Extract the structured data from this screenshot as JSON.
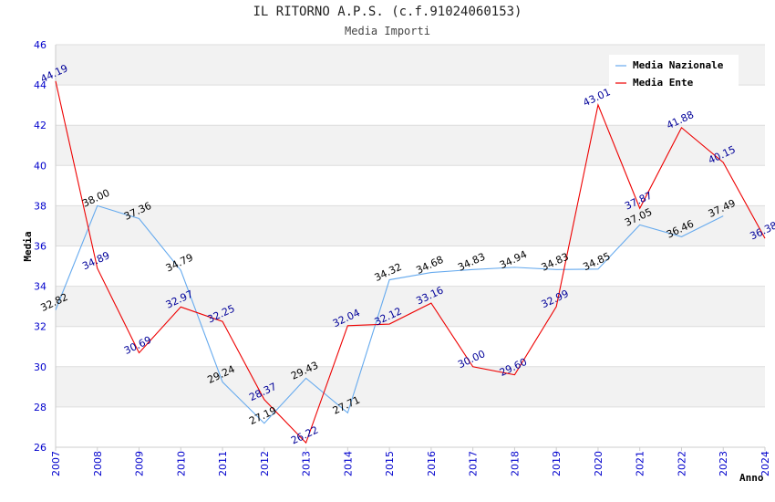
{
  "chart_data": {
    "type": "line",
    "title": "IL RITORNO A.P.S. (c.f.91024060153)",
    "subtitle": "Media Importi",
    "xlabel": "Anno",
    "ylabel": "Media",
    "ylim": [
      26,
      46
    ],
    "yticks": [
      26,
      28,
      30,
      32,
      34,
      36,
      38,
      40,
      42,
      44,
      46
    ],
    "categories": [
      "2007",
      "2008",
      "2009",
      "2010",
      "2011",
      "2012",
      "2013",
      "2014",
      "2015",
      "2016",
      "2017",
      "2018",
      "2019",
      "2020",
      "2021",
      "2022",
      "2023",
      "2024"
    ],
    "legend_position": "top-right",
    "series": [
      {
        "name": "Media Nazionale",
        "color": "#66aaee",
        "label_color": "#000000",
        "values": [
          32.82,
          38.0,
          37.36,
          34.79,
          29.24,
          27.19,
          29.43,
          27.71,
          34.32,
          34.68,
          34.83,
          34.94,
          34.83,
          34.85,
          37.05,
          36.46,
          37.49,
          null
        ],
        "labels": [
          "32.82",
          "38.00",
          "37.36",
          "34.79",
          "29.24",
          "27.19",
          "29.43",
          "27.71",
          "34.32",
          "34.68",
          "34.83",
          "34.94",
          "34.83",
          "34.85",
          "37.05",
          "36.46",
          "37.49",
          null
        ]
      },
      {
        "name": "Media Ente",
        "color": "#ee0000",
        "label_color": "#000099",
        "values": [
          44.19,
          34.89,
          30.69,
          32.97,
          32.25,
          28.37,
          26.22,
          32.04,
          32.12,
          33.16,
          30.0,
          29.6,
          32.99,
          43.01,
          37.87,
          41.88,
          40.15,
          36.38
        ],
        "labels": [
          "44.19",
          "34.89",
          "30.69",
          "32.97",
          "32.25",
          "28.37",
          "26.22",
          "32.04",
          "32.12",
          "33.16",
          "30.00",
          "29.60",
          "32.99",
          "43.01",
          "37.87",
          "41.88",
          "40.15",
          "36.38"
        ]
      }
    ]
  }
}
